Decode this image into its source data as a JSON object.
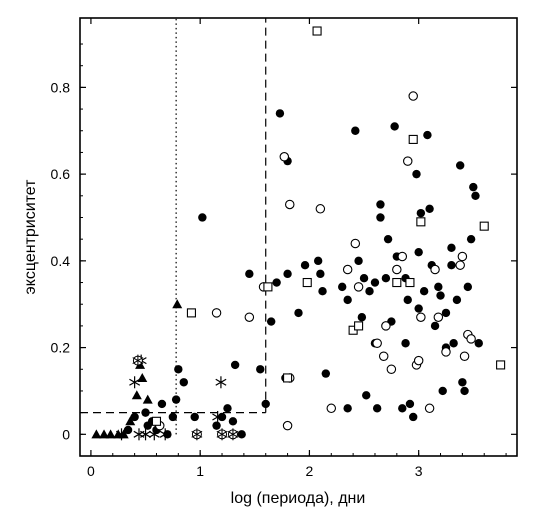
{
  "chart_data": {
    "type": "scatter",
    "xlabel": "log (периода), дни",
    "ylabel": "эксцентриситет",
    "xlim": [
      -0.1,
      3.9
    ],
    "ylim": [
      -0.05,
      0.96
    ],
    "xticks": [
      0,
      1,
      2,
      3
    ],
    "xtick_labels": [
      "0",
      "1",
      "2",
      "3"
    ],
    "yticks": [
      0,
      0.2,
      0.4,
      0.6,
      0.8
    ],
    "ytick_labels": [
      "0",
      "0.2",
      "0.4",
      "0.6",
      "0.8"
    ],
    "grid": false,
    "reference_lines": [
      {
        "kind": "vertical",
        "x": 0.78,
        "style": "dotted",
        "y_range": [
          0,
          0.96
        ]
      },
      {
        "kind": "vertical",
        "x": 1.6,
        "style": "dashed",
        "y_range": [
          0.05,
          0.96
        ]
      },
      {
        "kind": "horizontal",
        "y": 0.05,
        "style": "dashed",
        "x_range": [
          -0.1,
          1.6
        ]
      }
    ],
    "series": [
      {
        "marker": "filled-triangle",
        "points": [
          [
            0.05,
            0.0
          ],
          [
            0.12,
            0.0
          ],
          [
            0.18,
            0.0
          ],
          [
            0.25,
            0.0
          ],
          [
            0.3,
            0.0
          ],
          [
            0.36,
            0.03
          ],
          [
            0.42,
            0.09
          ],
          [
            0.47,
            0.13
          ],
          [
            0.52,
            0.08
          ],
          [
            0.45,
            0.16
          ],
          [
            0.79,
            0.3
          ]
        ]
      },
      {
        "marker": "asterisk",
        "points": [
          [
            0.4,
            0.12
          ],
          [
            0.46,
            0.17
          ],
          [
            0.44,
            0.0
          ],
          [
            0.5,
            0.0
          ],
          [
            0.58,
            0.0
          ],
          [
            0.68,
            0.0
          ],
          [
            1.19,
            0.12
          ],
          [
            1.16,
            0.04
          ],
          [
            0.28,
            0.0
          ]
        ]
      },
      {
        "marker": "star-circle",
        "points": [
          [
            0.43,
            0.17
          ],
          [
            1.2,
            0.0
          ],
          [
            0.97,
            0.0
          ],
          [
            1.3,
            0.0
          ]
        ]
      },
      {
        "marker": "filled-circle",
        "points": [
          [
            0.34,
            0.01
          ],
          [
            0.4,
            0.04
          ],
          [
            0.5,
            0.05
          ],
          [
            0.52,
            0.02
          ],
          [
            0.56,
            0.03
          ],
          [
            0.6,
            0.01
          ],
          [
            0.65,
            0.07
          ],
          [
            0.7,
            0.0
          ],
          [
            0.75,
            0.04
          ],
          [
            0.78,
            0.08
          ],
          [
            0.8,
            0.15
          ],
          [
            0.85,
            0.12
          ],
          [
            1.02,
            0.5
          ],
          [
            0.95,
            0.04
          ],
          [
            1.15,
            0.02
          ],
          [
            1.2,
            0.04
          ],
          [
            1.25,
            0.06
          ],
          [
            1.3,
            0.03
          ],
          [
            1.32,
            0.16
          ],
          [
            1.38,
            0.0
          ],
          [
            1.45,
            0.37
          ],
          [
            1.55,
            0.15
          ],
          [
            1.6,
            0.07
          ],
          [
            1.65,
            0.26
          ],
          [
            1.7,
            0.35
          ],
          [
            1.73,
            0.74
          ],
          [
            1.78,
            0.13
          ],
          [
            1.8,
            0.63
          ],
          [
            1.8,
            0.37
          ],
          [
            1.9,
            0.28
          ],
          [
            1.96,
            0.39
          ],
          [
            1.98,
            0.35
          ],
          [
            2.08,
            0.4
          ],
          [
            2.1,
            0.37
          ],
          [
            2.12,
            0.33
          ],
          [
            2.15,
            0.14
          ],
          [
            2.3,
            0.34
          ],
          [
            2.35,
            0.06
          ],
          [
            2.35,
            0.31
          ],
          [
            2.42,
            0.7
          ],
          [
            2.45,
            0.4
          ],
          [
            2.48,
            0.27
          ],
          [
            2.5,
            0.36
          ],
          [
            2.52,
            0.09
          ],
          [
            2.55,
            0.33
          ],
          [
            2.6,
            0.35
          ],
          [
            2.62,
            0.06
          ],
          [
            2.65,
            0.53
          ],
          [
            2.65,
            0.5
          ],
          [
            2.7,
            0.36
          ],
          [
            2.72,
            0.45
          ],
          [
            2.75,
            0.26
          ],
          [
            2.78,
            0.71
          ],
          [
            2.8,
            0.41
          ],
          [
            2.85,
            0.06
          ],
          [
            2.88,
            0.36
          ],
          [
            2.9,
            0.31
          ],
          [
            2.92,
            0.07
          ],
          [
            2.95,
            0.04
          ],
          [
            2.98,
            0.6
          ],
          [
            3.0,
            0.42
          ],
          [
            3.02,
            0.51
          ],
          [
            3.05,
            0.33
          ],
          [
            3.08,
            0.69
          ],
          [
            3.1,
            0.52
          ],
          [
            3.12,
            0.39
          ],
          [
            3.15,
            0.25
          ],
          [
            3.18,
            0.34
          ],
          [
            3.2,
            0.32
          ],
          [
            3.22,
            0.1
          ],
          [
            3.25,
            0.28
          ],
          [
            3.3,
            0.39
          ],
          [
            3.32,
            0.21
          ],
          [
            3.35,
            0.31
          ],
          [
            3.38,
            0.62
          ],
          [
            3.4,
            0.12
          ],
          [
            3.42,
            0.1
          ],
          [
            3.45,
            0.34
          ],
          [
            3.48,
            0.45
          ],
          [
            3.5,
            0.57
          ],
          [
            3.52,
            0.55
          ],
          [
            3.55,
            0.21
          ],
          [
            3.6,
            0.48
          ],
          [
            3.3,
            0.43
          ],
          [
            3.25,
            0.2
          ],
          [
            3.0,
            0.29
          ],
          [
            2.88,
            0.21
          ],
          [
            2.6,
            0.21
          ]
        ]
      },
      {
        "marker": "open-circle",
        "points": [
          [
            0.63,
            0.02
          ],
          [
            1.15,
            0.28
          ],
          [
            1.45,
            0.27
          ],
          [
            1.58,
            0.34
          ],
          [
            1.77,
            0.64
          ],
          [
            1.82,
            0.53
          ],
          [
            1.82,
            0.13
          ],
          [
            1.8,
            0.02
          ],
          [
            2.1,
            0.52
          ],
          [
            2.2,
            0.06
          ],
          [
            2.35,
            0.38
          ],
          [
            2.42,
            0.44
          ],
          [
            2.45,
            0.34
          ],
          [
            2.62,
            0.21
          ],
          [
            2.68,
            0.18
          ],
          [
            2.7,
            0.25
          ],
          [
            2.75,
            0.15
          ],
          [
            2.8,
            0.38
          ],
          [
            2.85,
            0.41
          ],
          [
            2.9,
            0.63
          ],
          [
            2.95,
            0.78
          ],
          [
            2.98,
            0.16
          ],
          [
            3.0,
            0.17
          ],
          [
            3.02,
            0.27
          ],
          [
            3.1,
            0.06
          ],
          [
            3.15,
            0.38
          ],
          [
            3.18,
            0.27
          ],
          [
            3.25,
            0.19
          ],
          [
            3.38,
            0.39
          ],
          [
            3.4,
            0.41
          ],
          [
            3.42,
            0.18
          ],
          [
            3.45,
            0.23
          ],
          [
            3.48,
            0.22
          ]
        ]
      },
      {
        "marker": "open-square",
        "points": [
          [
            0.6,
            0.03
          ],
          [
            0.92,
            0.28
          ],
          [
            1.62,
            0.34
          ],
          [
            1.8,
            0.13
          ],
          [
            1.98,
            0.35
          ],
          [
            2.07,
            0.93
          ],
          [
            2.4,
            0.24
          ],
          [
            2.45,
            0.25
          ],
          [
            2.92,
            0.35
          ],
          [
            2.95,
            0.68
          ],
          [
            3.02,
            0.49
          ],
          [
            3.6,
            0.48
          ],
          [
            3.75,
            0.16
          ],
          [
            2.8,
            0.35
          ]
        ]
      }
    ]
  }
}
